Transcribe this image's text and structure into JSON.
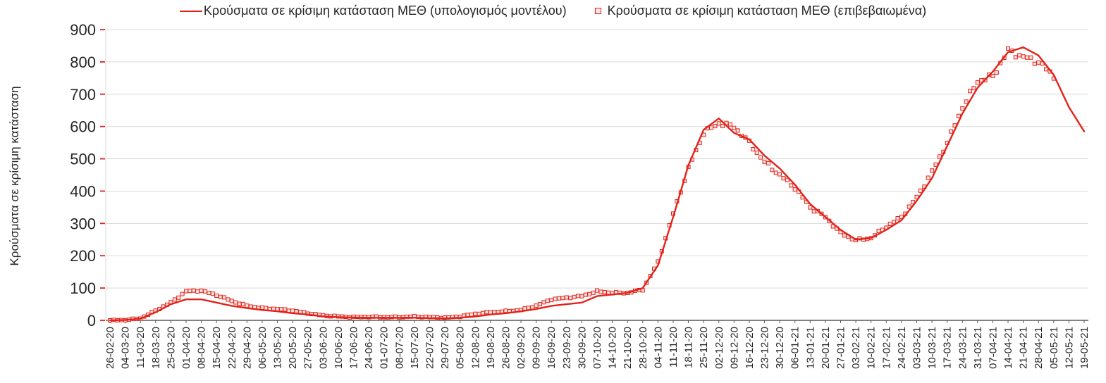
{
  "colors": {
    "accent": "#e2231a",
    "marker_fill": "#fbe4e2",
    "grid": "#d9d9d9",
    "axis": "#595959",
    "text": "#262626"
  },
  "chart_data": {
    "type": "line",
    "title": "",
    "xlabel": "",
    "ylabel": "Κρούσματα σε κρίσιμη κατάσταση",
    "ylim": [
      0,
      900
    ],
    "ytick_step": 100,
    "grid": true,
    "legend_position": "top",
    "categories": [
      "26-02-20",
      "04-03-20",
      "11-03-20",
      "18-03-20",
      "25-03-20",
      "01-04-20",
      "08-04-20",
      "15-04-20",
      "22-04-20",
      "29-04-20",
      "06-05-20",
      "13-05-20",
      "20-05-20",
      "27-05-20",
      "03-06-20",
      "10-06-20",
      "17-06-20",
      "24-06-20",
      "01-07-20",
      "08-07-20",
      "15-07-20",
      "22-07-20",
      "29-07-20",
      "05-08-20",
      "12-08-20",
      "19-08-20",
      "26-08-20",
      "02-09-20",
      "09-09-20",
      "16-09-20",
      "23-09-20",
      "30-09-20",
      "07-10-20",
      "14-10-20",
      "21-10-20",
      "28-10-20",
      "04-11-20",
      "11-11-20",
      "18-11-20",
      "25-11-20",
      "02-12-20",
      "09-12-20",
      "16-12-20",
      "23-12-20",
      "30-12-20",
      "06-01-21",
      "13-01-21",
      "20-01-21",
      "27-01-21",
      "03-02-21",
      "10-02-21",
      "17-02-21",
      "24-02-21",
      "03-03-21",
      "10-03-21",
      "17-03-21",
      "24-03-21",
      "31-03-21",
      "07-04-21",
      "14-04-21",
      "21-04-21",
      "28-04-21",
      "05-05-21",
      "12-05-21",
      "19-05-21"
    ],
    "series": [
      {
        "name": "Κρούσματα σε κρίσιμη κατάσταση ΜΕΘ (υπολογισμός μοντέλου)",
        "type": "line",
        "color": "#e2231a",
        "values": [
          0,
          1,
          5,
          25,
          50,
          65,
          65,
          55,
          45,
          38,
          32,
          28,
          22,
          18,
          12,
          10,
          9,
          8,
          8,
          8,
          8,
          7,
          6,
          8,
          12,
          18,
          22,
          28,
          35,
          45,
          50,
          55,
          75,
          80,
          85,
          100,
          170,
          320,
          480,
          590,
          625,
          580,
          560,
          510,
          470,
          420,
          360,
          320,
          280,
          250,
          255,
          280,
          310,
          370,
          440,
          540,
          640,
          720,
          770,
          830,
          845,
          820,
          760,
          660,
          585
        ]
      },
      {
        "name": "Κρούσματα σε κρίσιμη κατάσταση ΜΕΘ (επιβεβαιωμένα)",
        "type": "scatter-square",
        "color": "#e2231a",
        "values": [
          0,
          1,
          6,
          30,
          55,
          90,
          92,
          78,
          60,
          45,
          38,
          35,
          30,
          22,
          15,
          12,
          10,
          11,
          10,
          10,
          12,
          10,
          8,
          12,
          20,
          25,
          28,
          32,
          45,
          65,
          70,
          75,
          90,
          85,
          85,
          95,
          180,
          330,
          470,
          580,
          610,
          600,
          550,
          490,
          450,
          410,
          350,
          320,
          270,
          248,
          255,
          290,
          320,
          380,
          460,
          550,
          660,
          740,
          755,
          835,
          815,
          800,
          755,
          null,
          null
        ]
      }
    ]
  }
}
